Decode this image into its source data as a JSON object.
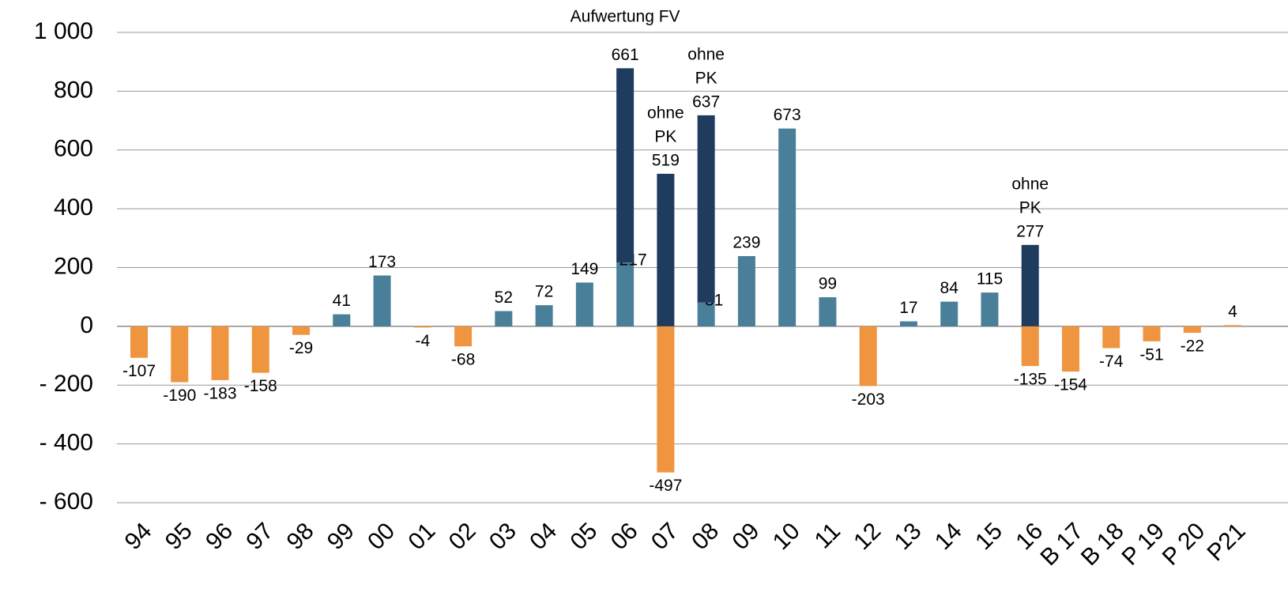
{
  "chart_data": {
    "type": "stacked_bar",
    "categories": [
      "94",
      "95",
      "96",
      "97",
      "98",
      "99",
      "00",
      "01",
      "02",
      "03",
      "04",
      "05",
      "06",
      "07",
      "08",
      "09",
      "10",
      "11",
      "12",
      "13",
      "14",
      "15",
      "16",
      "B 17",
      "B 18",
      "P 19",
      "P 20",
      "P21"
    ],
    "series": [
      {
        "color": "#4a7f99",
        "values": [
          null,
          null,
          null,
          null,
          null,
          41,
          173,
          null,
          null,
          52,
          72,
          149,
          217,
          null,
          81,
          239,
          673,
          99,
          null,
          17,
          84,
          115,
          null,
          null,
          null,
          null,
          null,
          null
        ]
      },
      {
        "color": "#1f3b5e",
        "values": [
          null,
          null,
          null,
          null,
          null,
          null,
          null,
          null,
          null,
          null,
          null,
          null,
          661,
          519,
          637,
          null,
          null,
          null,
          null,
          null,
          null,
          null,
          277,
          null,
          null,
          null,
          null,
          null
        ]
      },
      {
        "color": "#f0953f",
        "values": [
          -107,
          -190,
          -183,
          -158,
          -29,
          null,
          null,
          -4,
          -68,
          null,
          null,
          null,
          null,
          -497,
          null,
          null,
          null,
          null,
          -203,
          null,
          null,
          null,
          -135,
          -154,
          -74,
          -51,
          -22,
          4
        ]
      }
    ],
    "annotations": [
      {
        "category": "06",
        "lines": [
          "Aufwertung FV"
        ]
      },
      {
        "category": "07",
        "lines": [
          "ohne",
          "PK"
        ]
      },
      {
        "category": "08",
        "lines": [
          "ohne",
          "PK"
        ]
      },
      {
        "category": "16",
        "lines": [
          "ohne",
          "PK"
        ]
      }
    ],
    "ylim": [
      -600,
      1000
    ],
    "yticks": [
      {
        "value": -600,
        "label": "- 600"
      },
      {
        "value": -400,
        "label": "- 400"
      },
      {
        "value": -200,
        "label": "- 200"
      },
      0,
      200,
      400,
      600,
      800,
      {
        "value": 1000,
        "label": "1 000"
      }
    ],
    "grid": true
  }
}
